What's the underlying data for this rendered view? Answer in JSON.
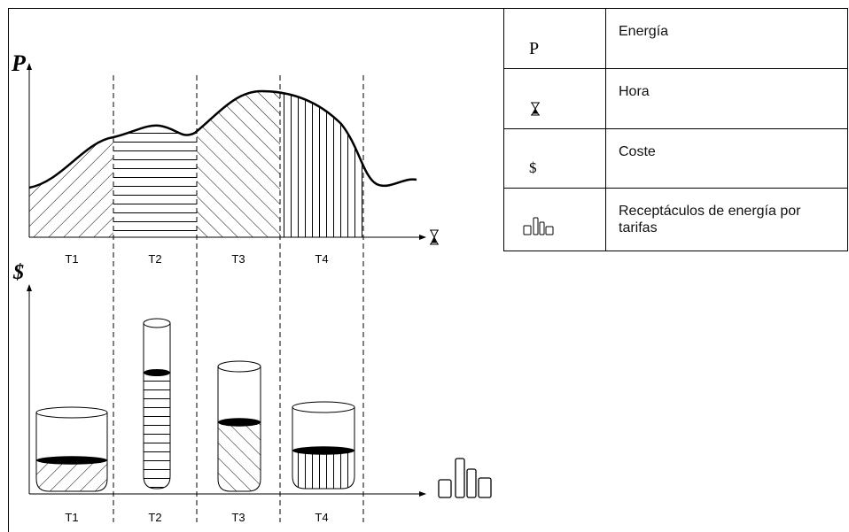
{
  "diagram": {
    "power_label": "P",
    "cost_label": "$",
    "top_periods": [
      "T1",
      "T2",
      "T3",
      "T4"
    ],
    "bottom_periods": [
      "T1",
      "T2",
      "T3",
      "T4"
    ]
  },
  "legend": {
    "rows": [
      {
        "symbol": "P",
        "text": "Energía"
      },
      {
        "text": "Hora"
      },
      {
        "symbol": "$",
        "text": "Coste"
      },
      {
        "text": "Receptáculos de energía por tarifas"
      }
    ]
  }
}
